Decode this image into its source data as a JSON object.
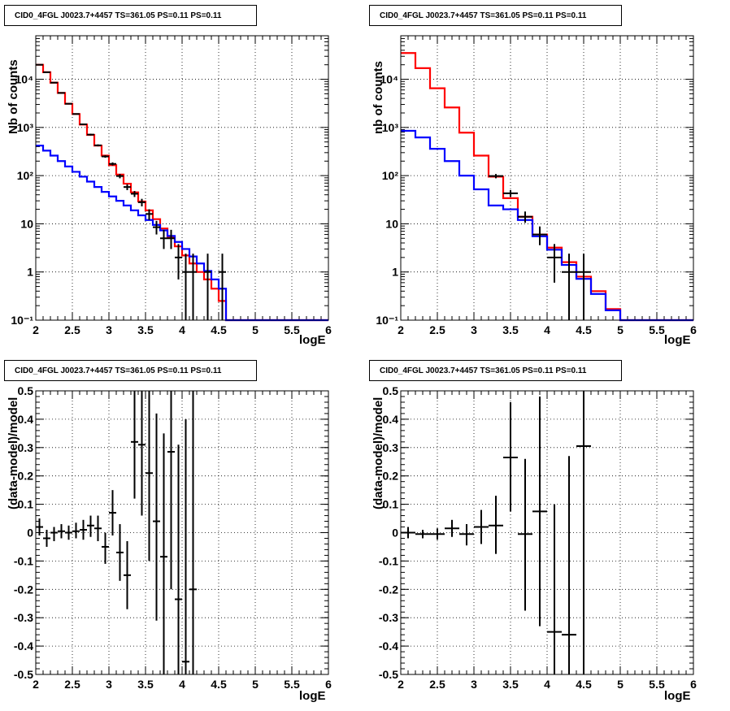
{
  "chart_data": [
    {
      "type": "histogram",
      "title": "CID0_4FGL J0023.7+4457 TS=361.05 PS=0.11 PS=0.11",
      "xlabel": "logE",
      "ylabel": "Nb of counts",
      "xlim": [
        2,
        6
      ],
      "ylim": [
        0.1,
        80000
      ],
      "yscale": "log",
      "grid": true,
      "x_ticks": [
        "2",
        "2.5",
        "3",
        "3.5",
        "4",
        "4.5",
        "5",
        "5.5",
        "6"
      ],
      "y_ticks": [
        {
          "v": 0.1,
          "label": "10⁻¹"
        },
        {
          "v": 1,
          "label": "1"
        },
        {
          "v": 10,
          "label": "10"
        },
        {
          "v": 100,
          "label": "10²"
        },
        {
          "v": 1000,
          "label": "10³"
        },
        {
          "v": 10000,
          "label": "10⁴"
        }
      ],
      "bin_edges": [
        2.0,
        2.1,
        2.2,
        2.3,
        2.4,
        2.5,
        2.6,
        2.7,
        2.8,
        2.9,
        3.0,
        3.1,
        3.2,
        3.3,
        3.4,
        3.5,
        3.6,
        3.7,
        3.8,
        3.9,
        4.0,
        4.1,
        4.2,
        4.3,
        4.4,
        4.5,
        4.6,
        4.7,
        4.8,
        4.9,
        5.0,
        5.1,
        5.2,
        5.3,
        5.4,
        5.5,
        5.6,
        5.7,
        5.8,
        5.9,
        6.0
      ],
      "series": [
        {
          "color": "#ff0000",
          "values": [
            20000,
            14000,
            8500,
            5200,
            3100,
            1900,
            1150,
            700,
            420,
            260,
            165,
            105,
            68,
            45,
            29,
            19,
            12.5,
            8,
            5.2,
            3.4,
            2.2,
            1.5,
            1.0,
            0.7,
            0.45,
            0.25,
            0.1,
            0.1,
            0.1,
            0.1,
            0.1,
            0.1,
            0.1,
            0.1,
            0.1,
            0.1,
            0.1,
            0.1,
            0.1,
            0.1
          ]
        },
        {
          "color": "#0000ff",
          "values": [
            420,
            330,
            260,
            200,
            155,
            120,
            95,
            75,
            58,
            46,
            37,
            30,
            24,
            19,
            15,
            12,
            9.5,
            7.3,
            5.6,
            4.2,
            3.0,
            2.1,
            1.5,
            1.05,
            0.7,
            0.45,
            0.1,
            0.1,
            0.1,
            0.1,
            0.1,
            0.1,
            0.1,
            0.1,
            0.1,
            0.1,
            0.1,
            0.1,
            0.1,
            0.1
          ]
        },
        {
          "color": "#000000",
          "values": [
            20000,
            14000,
            8500,
            5200,
            3100,
            1900,
            1150,
            700,
            420,
            260,
            165,
            105,
            68,
            45,
            29,
            19,
            12.5,
            8,
            5.2,
            3.4,
            2.2,
            1.5,
            1.0,
            0.7,
            0.45,
            0.25,
            0.1,
            0.1,
            0.1,
            0.1,
            0.1,
            0.1,
            0.1,
            0.1,
            0.1,
            0.1,
            0.1,
            0.1,
            0.1,
            0.1
          ]
        }
      ],
      "series_style": [
        "step",
        "step",
        "step-under"
      ],
      "data_points": [
        {
          "x": 2.05,
          "y": 20000,
          "lo": 19800,
          "hi": 20200
        },
        {
          "x": 2.15,
          "y": 14000,
          "lo": 13800,
          "hi": 14200
        },
        {
          "x": 2.25,
          "y": 8500,
          "lo": 8300,
          "hi": 8700
        },
        {
          "x": 2.35,
          "y": 5200,
          "lo": 5050,
          "hi": 5350
        },
        {
          "x": 2.45,
          "y": 3100,
          "lo": 3000,
          "hi": 3200
        },
        {
          "x": 2.55,
          "y": 1900,
          "lo": 1850,
          "hi": 1950
        },
        {
          "x": 2.65,
          "y": 1160,
          "lo": 1120,
          "hi": 1200
        },
        {
          "x": 2.75,
          "y": 710,
          "lo": 680,
          "hi": 740
        },
        {
          "x": 2.85,
          "y": 425,
          "lo": 405,
          "hi": 445
        },
        {
          "x": 2.95,
          "y": 250,
          "lo": 235,
          "hi": 265
        },
        {
          "x": 3.05,
          "y": 175,
          "lo": 162,
          "hi": 188
        },
        {
          "x": 3.15,
          "y": 98,
          "lo": 88,
          "hi": 108
        },
        {
          "x": 3.25,
          "y": 58,
          "lo": 50,
          "hi": 66
        },
        {
          "x": 3.35,
          "y": 42,
          "lo": 36,
          "hi": 48
        },
        {
          "x": 3.45,
          "y": 28,
          "lo": 23,
          "hi": 33
        },
        {
          "x": 3.55,
          "y": 16,
          "lo": 12,
          "hi": 20
        },
        {
          "x": 3.65,
          "y": 8.5,
          "lo": 6,
          "hi": 11.5
        },
        {
          "x": 3.75,
          "y": 5,
          "lo": 3,
          "hi": 7.5
        },
        {
          "x": 3.85,
          "y": 5,
          "lo": 3,
          "hi": 7.5
        },
        {
          "x": 3.95,
          "y": 2,
          "lo": 0.7,
          "hi": 3.8
        },
        {
          "x": 4.05,
          "y": 1,
          "lo": 0.1,
          "hi": 2.4
        },
        {
          "x": 4.15,
          "y": 1,
          "lo": 0.1,
          "hi": 2.4
        },
        {
          "x": 4.35,
          "y": 1,
          "lo": 0.1,
          "hi": 2.4
        },
        {
          "x": 4.55,
          "y": 1,
          "lo": 0.1,
          "hi": 2.4
        }
      ]
    },
    {
      "type": "histogram",
      "title": "CID0_4FGL J0023.7+4457 TS=361.05 PS=0.11 PS=0.11",
      "xlabel": "logE",
      "ylabel": "nb of counts",
      "xlim": [
        2,
        6
      ],
      "ylim": [
        0.1,
        80000
      ],
      "yscale": "log",
      "grid": true,
      "x_ticks": [
        "2",
        "2.5",
        "3",
        "3.5",
        "4",
        "4.5",
        "5",
        "5.5",
        "6"
      ],
      "y_ticks": [
        {
          "v": 0.1,
          "label": "10⁻¹"
        },
        {
          "v": 1,
          "label": "1"
        },
        {
          "v": 10,
          "label": "10"
        },
        {
          "v": 100,
          "label": "10²"
        },
        {
          "v": 1000,
          "label": "10³"
        },
        {
          "v": 10000,
          "label": "10⁴"
        }
      ],
      "bin_edges": [
        2.0,
        2.2,
        2.4,
        2.6,
        2.8,
        3.0,
        3.2,
        3.4,
        3.6,
        3.8,
        4.0,
        4.2,
        4.4,
        4.6,
        4.8,
        5.0,
        5.2,
        5.4,
        5.6,
        5.8,
        6.0
      ],
      "series": [
        {
          "color": "#ff0000",
          "values": [
            35000,
            17000,
            6500,
            2600,
            780,
            260,
            95,
            34,
            14,
            6,
            3.2,
            1.6,
            0.8,
            0.4,
            0.17,
            0.1,
            0.1,
            0.1,
            0.1,
            0.1
          ]
        },
        {
          "color": "#0000ff",
          "values": [
            850,
            620,
            360,
            200,
            100,
            52,
            24,
            20,
            12,
            5.5,
            2.9,
            1.4,
            0.72,
            0.35,
            0.16,
            0.1,
            0.1,
            0.1,
            0.1,
            0.1
          ]
        }
      ],
      "series_style": [
        "step",
        "step"
      ],
      "data_points": [
        {
          "x": 3.3,
          "y": 98,
          "lo": 88,
          "hi": 108
        },
        {
          "x": 3.5,
          "y": 43,
          "lo": 36,
          "hi": 50
        },
        {
          "x": 3.7,
          "y": 14,
          "lo": 10.5,
          "hi": 18
        },
        {
          "x": 3.9,
          "y": 6,
          "lo": 3.6,
          "hi": 8.8
        },
        {
          "x": 4.1,
          "y": 2,
          "lo": 0.6,
          "hi": 3.8
        },
        {
          "x": 4.3,
          "y": 1,
          "lo": 0.1,
          "hi": 2.4
        },
        {
          "x": 4.5,
          "y": 1,
          "lo": 0.1,
          "hi": 2.4
        }
      ]
    },
    {
      "type": "scatter",
      "title": "CID0_4FGL J0023.7+4457 TS=361.05 PS=0.11 PS=0.11",
      "xlabel": "logE",
      "ylabel": "(data-model)/model",
      "xlim": [
        2,
        6
      ],
      "ylim": [
        -0.5,
        0.5
      ],
      "grid": true,
      "x_ticks": [
        "2",
        "2.5",
        "3",
        "3.5",
        "4",
        "4.5",
        "5",
        "5.5",
        "6"
      ],
      "y_ticks": [
        "-0.5",
        "-0.4",
        "-0.3",
        "-0.2",
        "-0.1",
        "0",
        "0.1",
        "0.2",
        "0.3",
        "0.4",
        "0.5"
      ],
      "xerr": 0.05,
      "points": [
        {
          "x": 2.05,
          "y": 0.02,
          "lo": -0.01,
          "hi": 0.05
        },
        {
          "x": 2.15,
          "y": -0.02,
          "lo": -0.05,
          "hi": 0.01
        },
        {
          "x": 2.25,
          "y": 0.0,
          "lo": -0.03,
          "hi": 0.02
        },
        {
          "x": 2.35,
          "y": 0.005,
          "lo": -0.02,
          "hi": 0.03
        },
        {
          "x": 2.45,
          "y": 0.0,
          "lo": -0.025,
          "hi": 0.025
        },
        {
          "x": 2.55,
          "y": 0.005,
          "lo": -0.02,
          "hi": 0.035
        },
        {
          "x": 2.65,
          "y": 0.01,
          "lo": -0.025,
          "hi": 0.045
        },
        {
          "x": 2.75,
          "y": 0.025,
          "lo": -0.015,
          "hi": 0.06
        },
        {
          "x": 2.85,
          "y": 0.015,
          "lo": -0.03,
          "hi": 0.06
        },
        {
          "x": 2.95,
          "y": -0.05,
          "lo": -0.11,
          "hi": 0.0
        },
        {
          "x": 3.05,
          "y": 0.07,
          "lo": -0.01,
          "hi": 0.15
        },
        {
          "x": 3.15,
          "y": -0.07,
          "lo": -0.17,
          "hi": 0.03
        },
        {
          "x": 3.25,
          "y": -0.15,
          "lo": -0.27,
          "hi": -0.03
        },
        {
          "x": 3.35,
          "y": 0.32,
          "lo": 0.12,
          "hi": 0.5
        },
        {
          "x": 3.45,
          "y": 0.31,
          "lo": 0.06,
          "hi": 0.5
        },
        {
          "x": 3.55,
          "y": 0.21,
          "lo": -0.1,
          "hi": 0.5
        },
        {
          "x": 3.65,
          "y": 0.04,
          "lo": -0.31,
          "hi": 0.42
        },
        {
          "x": 3.75,
          "y": -0.085,
          "lo": -0.5,
          "hi": 0.35
        },
        {
          "x": 3.85,
          "y": 0.285,
          "lo": -0.2,
          "hi": 0.5
        },
        {
          "x": 3.95,
          "y": -0.235,
          "lo": -0.5,
          "hi": 0.31
        },
        {
          "x": 4.05,
          "y": -0.455,
          "lo": -0.5,
          "hi": 0.4
        },
        {
          "x": 4.15,
          "y": -0.2,
          "lo": -0.5,
          "hi": 0.5
        }
      ]
    },
    {
      "type": "scatter",
      "title": "CID0_4FGL J0023.7+4457 TS=361.05 PS=0.11 PS=0.11",
      "xlabel": "logE",
      "ylabel": "(data-model)/model",
      "xlim": [
        2,
        6
      ],
      "ylim": [
        -0.5,
        0.5
      ],
      "grid": true,
      "x_ticks": [
        "2",
        "2.5",
        "3",
        "3.5",
        "4",
        "4.5",
        "5",
        "5.5",
        "6"
      ],
      "y_ticks": [
        "-0.5",
        "-0.4",
        "-0.3",
        "-0.2",
        "-0.1",
        "0",
        "0.1",
        "0.2",
        "0.3",
        "0.4",
        "0.5"
      ],
      "xerr": 0.1,
      "points": [
        {
          "x": 2.1,
          "y": 0.0,
          "lo": -0.02,
          "hi": 0.02
        },
        {
          "x": 2.3,
          "y": -0.005,
          "lo": -0.02,
          "hi": 0.01
        },
        {
          "x": 2.5,
          "y": -0.005,
          "lo": -0.025,
          "hi": 0.015
        },
        {
          "x": 2.7,
          "y": 0.015,
          "lo": -0.015,
          "hi": 0.045
        },
        {
          "x": 2.9,
          "y": -0.005,
          "lo": -0.045,
          "hi": 0.03
        },
        {
          "x": 3.1,
          "y": 0.02,
          "lo": -0.04,
          "hi": 0.08
        },
        {
          "x": 3.3,
          "y": 0.025,
          "lo": -0.075,
          "hi": 0.13
        },
        {
          "x": 3.5,
          "y": 0.265,
          "lo": 0.075,
          "hi": 0.46
        },
        {
          "x": 3.7,
          "y": -0.005,
          "lo": -0.275,
          "hi": 0.26
        },
        {
          "x": 3.9,
          "y": 0.075,
          "lo": -0.33,
          "hi": 0.48
        },
        {
          "x": 4.1,
          "y": -0.35,
          "lo": -0.5,
          "hi": 0.1
        },
        {
          "x": 4.3,
          "y": -0.36,
          "lo": -0.5,
          "hi": 0.27
        },
        {
          "x": 4.5,
          "y": 0.305,
          "lo": -0.5,
          "hi": 0.5
        }
      ]
    }
  ]
}
